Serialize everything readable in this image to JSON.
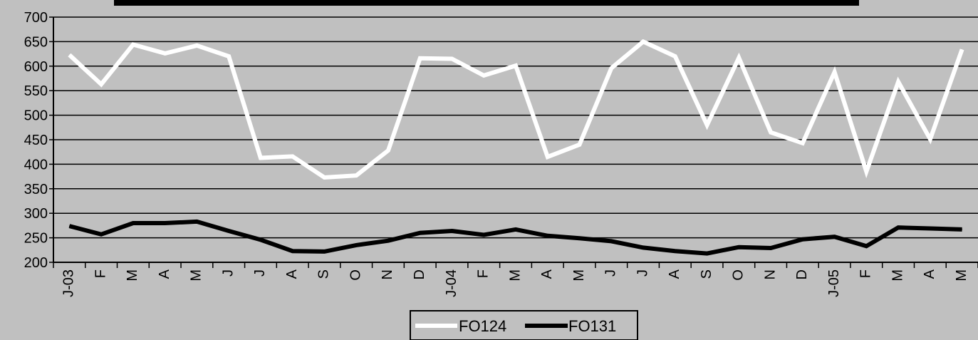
{
  "chart_data": {
    "type": "line",
    "title": "",
    "xlabel": "",
    "ylabel": "",
    "ylim": [
      200,
      700
    ],
    "y_ticks": [
      200,
      250,
      300,
      350,
      400,
      450,
      500,
      550,
      600,
      650,
      700
    ],
    "grid": true,
    "legend_position": "bottom",
    "categories": [
      "J-03",
      "F",
      "M",
      "A",
      "M",
      "J",
      "J",
      "A",
      "S",
      "O",
      "N",
      "D",
      "J-04",
      "F",
      "M",
      "A",
      "M",
      "J",
      "J",
      "A",
      "S",
      "O",
      "N",
      "D",
      "J-05",
      "F",
      "M",
      "A",
      "M"
    ],
    "series": [
      {
        "name": "FO124",
        "color": "#ffffff",
        "values": [
          623,
          563,
          644,
          626,
          642,
          620,
          413,
          416,
          373,
          377,
          428,
          616,
          615,
          581,
          601,
          415,
          440,
          596,
          650,
          620,
          480,
          617,
          465,
          443,
          588,
          385,
          568,
          451,
          634
        ]
      },
      {
        "name": "FO131",
        "color": "#000000",
        "values": [
          274,
          257,
          280,
          280,
          283,
          264,
          246,
          223,
          222,
          235,
          244,
          260,
          264,
          256,
          267,
          254,
          249,
          243,
          230,
          223,
          218,
          231,
          229,
          247,
          252,
          233,
          271,
          269,
          267
        ]
      }
    ]
  }
}
